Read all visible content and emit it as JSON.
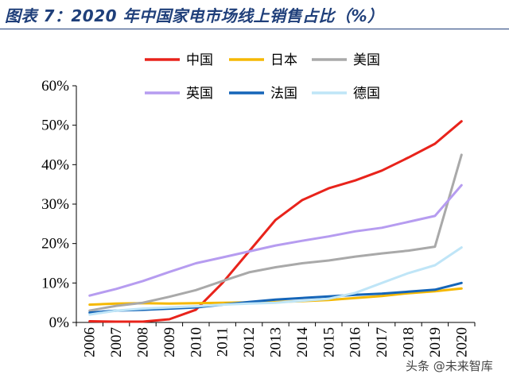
{
  "header": {
    "title": "图表 7：2020 年中国家电市场线上销售占比（%）"
  },
  "watermark": "头条 @未来智库",
  "chart_data": {
    "type": "line",
    "title": "",
    "xlabel": "",
    "ylabel": "",
    "ylim": [
      0,
      60
    ],
    "ytick_format": "percent",
    "yticks": [
      "0%",
      "10%",
      "20%",
      "30%",
      "40%",
      "50%",
      "60%"
    ],
    "categories": [
      "2006",
      "2007",
      "2008",
      "2009",
      "2010",
      "2011",
      "2012",
      "2013",
      "2014",
      "2015",
      "2016",
      "2017",
      "2018",
      "2019",
      "2020"
    ],
    "grid": false,
    "legend_position": "top",
    "series": [
      {
        "name": "中国",
        "color": "#e8231b",
        "values": [
          0.3,
          0.2,
          0.2,
          0.8,
          3.2,
          10,
          18,
          26,
          31,
          34,
          36,
          38.5,
          41.8,
          45.3,
          51
        ]
      },
      {
        "name": "日本",
        "color": "#f5b800",
        "values": [
          4.5,
          4.8,
          4.9,
          4.8,
          4.9,
          5,
          5.1,
          5.2,
          5.4,
          5.7,
          6.2,
          6.7,
          7.4,
          7.9,
          8.6
        ]
      },
      {
        "name": "美国",
        "color": "#a9a9a9",
        "values": [
          3,
          4.2,
          5,
          6.5,
          8.2,
          10.5,
          12.7,
          14,
          15,
          15.7,
          16.7,
          17.5,
          18.2,
          19.2,
          42.5
        ]
      },
      {
        "name": "英国",
        "color": "#b69cf0",
        "values": [
          6.8,
          8.5,
          10.5,
          12.8,
          15,
          16.5,
          18,
          19.5,
          20.7,
          21.8,
          23.1,
          24,
          25.5,
          27,
          34.8
        ]
      },
      {
        "name": "法国",
        "color": "#1565b8",
        "values": [
          2.5,
          3,
          3.2,
          3.5,
          3.8,
          4.5,
          5.2,
          5.8,
          6.2,
          6.6,
          7,
          7.3,
          7.8,
          8.3,
          10
        ]
      },
      {
        "name": "德国",
        "color": "#bfe5f7",
        "values": [
          2,
          3,
          3.5,
          3.8,
          4.1,
          4.5,
          4.8,
          5,
          5.5,
          6,
          7.5,
          10,
          12.5,
          14.5,
          19
        ]
      }
    ]
  }
}
